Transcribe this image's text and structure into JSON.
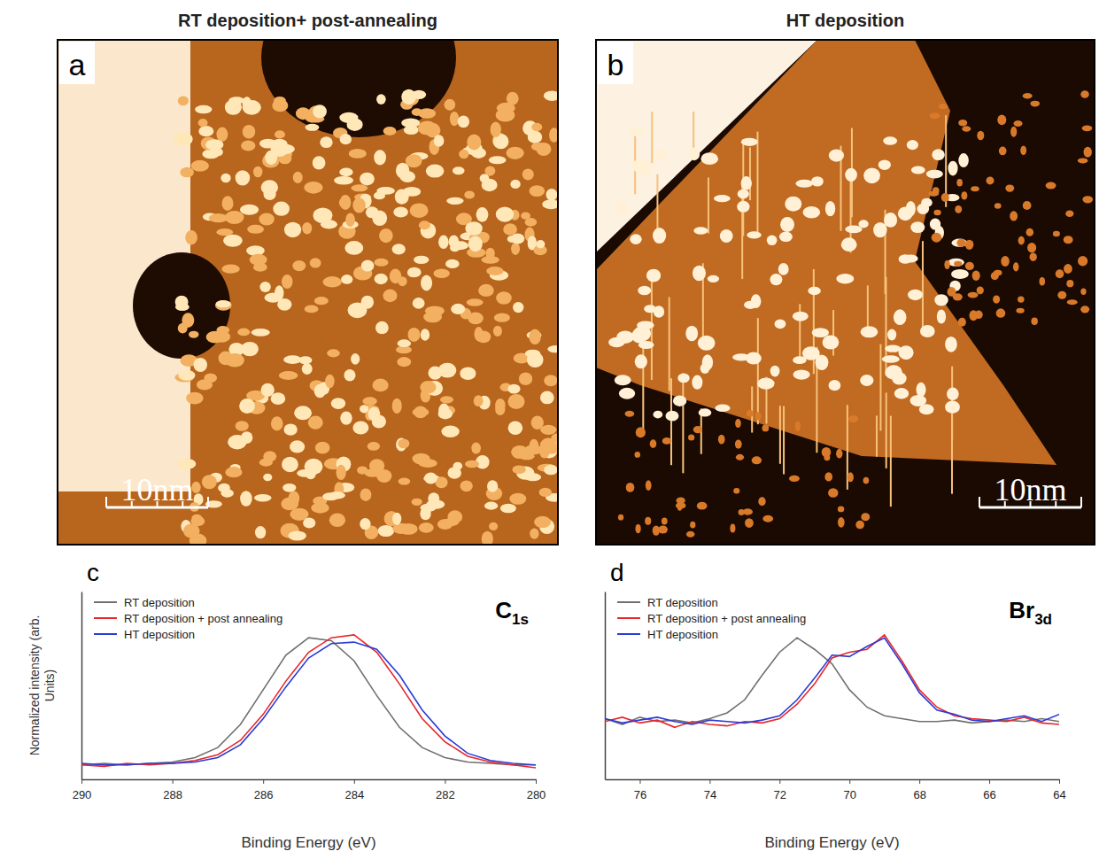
{
  "figure": {
    "panels": [
      {
        "letter": "a",
        "title": "RT deposition+ post-annealing",
        "scale_bar": "10nm"
      },
      {
        "letter": "b",
        "title": "HT deposition",
        "scale_bar": "10nm"
      }
    ]
  },
  "chart_data": [
    {
      "type": "line",
      "letter": "c",
      "title": "C1s",
      "x_label": "Binding Energy (eV)",
      "y_label": "Normalized intensity (arb. Units)",
      "x": [
        290,
        289.5,
        289,
        288.5,
        288,
        287.5,
        287,
        286.5,
        286,
        285.5,
        285,
        284.5,
        284,
        283.5,
        283,
        282.5,
        282,
        281.5,
        281,
        280.5,
        280
      ],
      "xlim": [
        290,
        280
      ],
      "xticks": [
        290,
        288,
        286,
        284,
        282,
        280
      ],
      "ylim": [
        0,
        1.3
      ],
      "yticks": [],
      "tick_labels": "x",
      "legend": "upper left",
      "series": [
        {
          "name": "RT deposition",
          "color": "#707070",
          "values": [
            0.1,
            0.11,
            0.1,
            0.11,
            0.12,
            0.15,
            0.22,
            0.38,
            0.62,
            0.86,
            0.98,
            0.96,
            0.82,
            0.58,
            0.36,
            0.22,
            0.15,
            0.12,
            0.11,
            0.1,
            0.1
          ]
        },
        {
          "name": "RT deposition + post annealing",
          "color": "#e8262a",
          "values": [
            0.1,
            0.09,
            0.11,
            0.1,
            0.11,
            0.13,
            0.17,
            0.27,
            0.45,
            0.68,
            0.88,
            0.98,
            1.0,
            0.88,
            0.66,
            0.42,
            0.26,
            0.16,
            0.12,
            0.1,
            0.08
          ]
        },
        {
          "name": "HT deposition",
          "color": "#2b3bd6",
          "values": [
            0.11,
            0.1,
            0.1,
            0.11,
            0.11,
            0.12,
            0.15,
            0.24,
            0.42,
            0.64,
            0.84,
            0.94,
            0.95,
            0.9,
            0.72,
            0.48,
            0.3,
            0.18,
            0.13,
            0.11,
            0.1
          ]
        }
      ]
    },
    {
      "type": "line",
      "letter": "d",
      "title": "Br3d",
      "x_label": "Binding Energy (eV)",
      "x": [
        77,
        76.5,
        76,
        75.5,
        75,
        74.5,
        74,
        73.5,
        73,
        72.5,
        72,
        71.5,
        71,
        70.5,
        70,
        69.5,
        69,
        68.5,
        68,
        67.5,
        67,
        66.5,
        66,
        65.5,
        65,
        64.5,
        64
      ],
      "xlim": [
        77,
        64
      ],
      "xticks": [
        76,
        74,
        72,
        70,
        68,
        66,
        64
      ],
      "ylim": [
        0,
        1.3
      ],
      "yticks": [],
      "tick_labels": "x",
      "legend": "upper left",
      "series": [
        {
          "name": "RT deposition",
          "color": "#707070",
          "values": [
            0.42,
            0.38,
            0.43,
            0.4,
            0.41,
            0.39,
            0.42,
            0.46,
            0.55,
            0.72,
            0.88,
            0.98,
            0.9,
            0.8,
            0.62,
            0.5,
            0.44,
            0.42,
            0.4,
            0.4,
            0.41,
            0.39,
            0.4,
            0.41,
            0.4,
            0.42,
            0.4
          ]
        },
        {
          "name": "RT deposition + post annealing",
          "color": "#e8262a",
          "values": [
            0.4,
            0.43,
            0.39,
            0.41,
            0.36,
            0.4,
            0.38,
            0.37,
            0.4,
            0.39,
            0.42,
            0.52,
            0.66,
            0.84,
            0.88,
            0.9,
            1.0,
            0.82,
            0.62,
            0.5,
            0.44,
            0.42,
            0.41,
            0.4,
            0.43,
            0.39,
            0.38
          ]
        },
        {
          "name": "HT deposition",
          "color": "#2b3bd6",
          "values": [
            0.42,
            0.39,
            0.41,
            0.43,
            0.4,
            0.38,
            0.41,
            0.4,
            0.39,
            0.41,
            0.44,
            0.55,
            0.7,
            0.86,
            0.85,
            0.92,
            0.98,
            0.8,
            0.6,
            0.48,
            0.45,
            0.41,
            0.4,
            0.42,
            0.44,
            0.4,
            0.45
          ]
        }
      ]
    }
  ]
}
